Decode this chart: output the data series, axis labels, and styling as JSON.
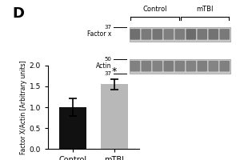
{
  "panel_label": "D",
  "bar_categories": [
    "Control",
    "mTBI"
  ],
  "bar_values": [
    1.0,
    1.55
  ],
  "bar_errors": [
    0.22,
    0.12
  ],
  "bar_colors": [
    "#111111",
    "#b8b8b8"
  ],
  "ylabel": "Factor X/Actin [Arbitrary units]",
  "ylim": [
    0,
    2.0
  ],
  "yticks": [
    0.0,
    0.5,
    1.0,
    1.5,
    2.0
  ],
  "significance_label": "*",
  "wb_label_factor": "Factor x",
  "wb_label_actin": "Actin",
  "wb_mw_37_top": "37",
  "wb_mw_50": "50",
  "wb_mw_37_bot": "37",
  "control_label": "Control",
  "mtbi_label": "mTBI",
  "background_color": "#ffffff",
  "n_lanes": 9,
  "band1_color": "#606060",
  "band2_color": "#707070",
  "gel_bg_color": "#c8c8c8"
}
